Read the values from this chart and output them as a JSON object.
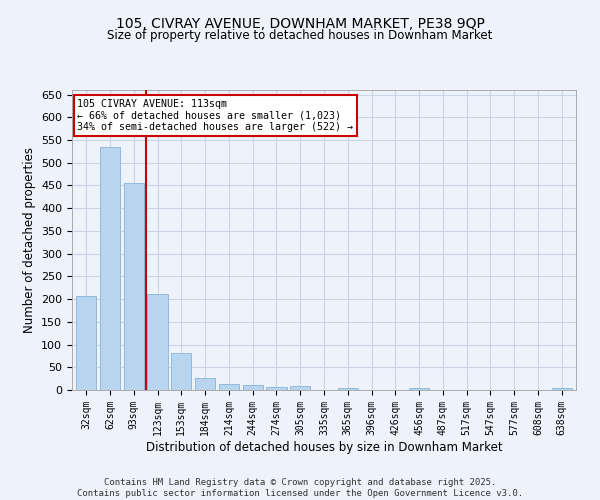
{
  "title_line1": "105, CIVRAY AVENUE, DOWNHAM MARKET, PE38 9QP",
  "title_line2": "Size of property relative to detached houses in Downham Market",
  "xlabel": "Distribution of detached houses by size in Downham Market",
  "ylabel": "Number of detached properties",
  "footer": "Contains HM Land Registry data © Crown copyright and database right 2025.\nContains public sector information licensed under the Open Government Licence v3.0.",
  "categories": [
    "32sqm",
    "62sqm",
    "93sqm",
    "123sqm",
    "153sqm",
    "184sqm",
    "214sqm",
    "244sqm",
    "274sqm",
    "305sqm",
    "335sqm",
    "365sqm",
    "396sqm",
    "426sqm",
    "456sqm",
    "487sqm",
    "517sqm",
    "547sqm",
    "577sqm",
    "608sqm",
    "638sqm"
  ],
  "values": [
    207,
    535,
    456,
    211,
    81,
    26,
    14,
    11,
    7,
    8,
    0,
    5,
    0,
    0,
    4,
    0,
    0,
    0,
    0,
    0,
    5
  ],
  "bar_color": "#b8d4ee",
  "bar_edge_color": "#88b4d8",
  "grid_color": "#c8d4e8",
  "bg_color": "#eef2fa",
  "vline_x": 2.5,
  "vline_color": "#cc0000",
  "annotation_text": "105 CIVRAY AVENUE: 113sqm\n← 66% of detached houses are smaller (1,023)\n34% of semi-detached houses are larger (522) →",
  "annotation_box_color": "#cc0000",
  "ylim": [
    0,
    660
  ],
  "yticks": [
    0,
    50,
    100,
    150,
    200,
    250,
    300,
    350,
    400,
    450,
    500,
    550,
    600,
    650
  ]
}
